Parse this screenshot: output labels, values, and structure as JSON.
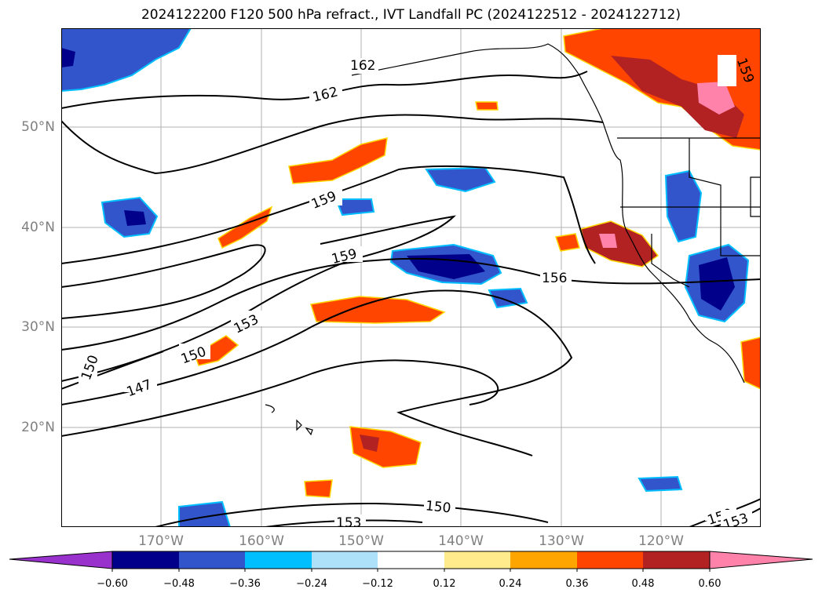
{
  "title": "2024122200 F120 500 hPa refract., IVT Landfall PC (2024122512 - 2024122712)",
  "map": {
    "projection": "PlateCarree",
    "lon_range": [
      -180,
      -110
    ],
    "lat_range": [
      10,
      60
    ],
    "lat_labels": [
      "50°N",
      "40°N",
      "30°N",
      "20°N"
    ],
    "lon_labels": [
      "170°W",
      "160°W",
      "150°W",
      "140°W",
      "130°W",
      "120°W"
    ],
    "contour_labels": [
      "162",
      "162",
      "159",
      "159",
      "159",
      "156",
      "153",
      "150",
      "150",
      "147",
      "150",
      "153",
      "150",
      "153"
    ],
    "gridlines": true,
    "coastline_color": "#000000"
  },
  "colorbar": {
    "ticks": [
      "−0.60",
      "−0.48",
      "−0.36",
      "−0.24",
      "−0.12",
      "0.12",
      "0.24",
      "0.36",
      "0.48",
      "0.60"
    ],
    "colors": [
      "#9932CC",
      "#00008B",
      "#3355CC",
      "#00BFFF",
      "#ADE1FA",
      "#FFFFFF",
      "#FFEB8C",
      "#FFA500",
      "#FF4500",
      "#B22222",
      "#FF82AB"
    ],
    "extend": "both"
  }
}
